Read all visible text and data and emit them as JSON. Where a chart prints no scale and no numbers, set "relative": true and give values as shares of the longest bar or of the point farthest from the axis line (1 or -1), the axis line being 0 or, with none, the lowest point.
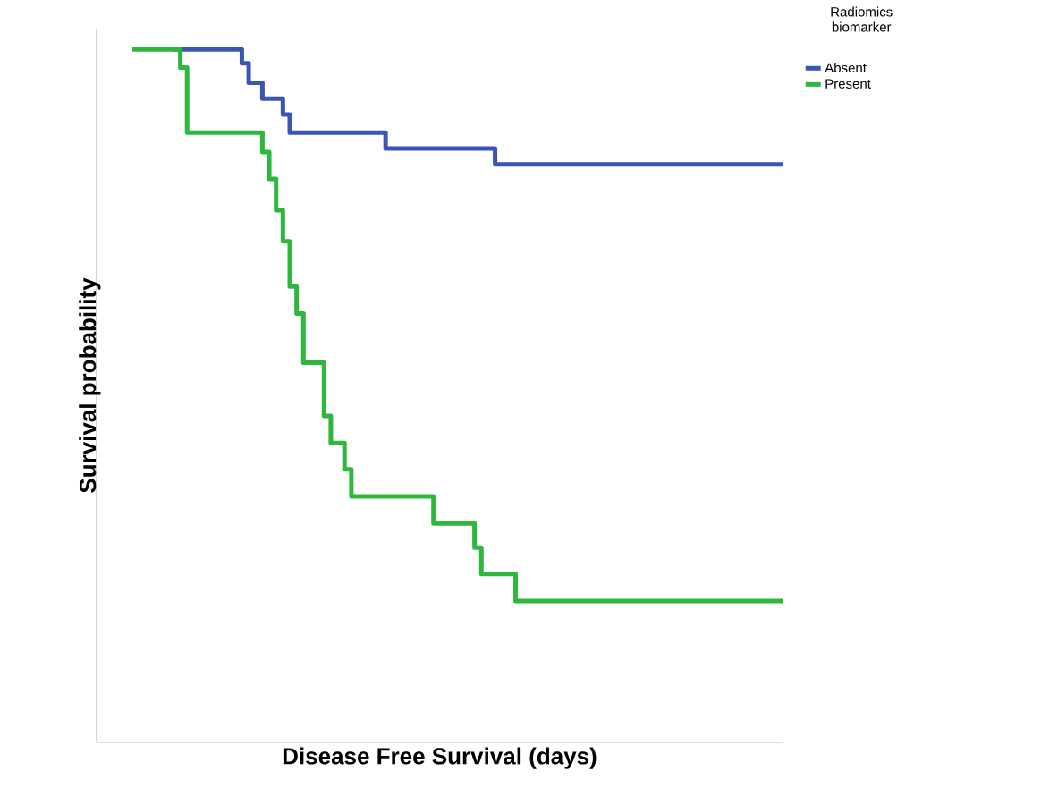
{
  "chart_data": {
    "type": "step",
    "relative": true,
    "xlabel": "Disease Free Survival (days)",
    "ylabel": "Survival probability",
    "legend_title": "Radiomics biomarker",
    "legend": "top right",
    "categories": [
      null,
      null,
      null,
      null,
      null,
      null,
      null,
      null,
      null,
      null,
      null,
      null,
      null,
      null,
      null,
      null,
      null,
      null,
      null,
      null,
      null,
      null,
      null,
      null,
      null,
      null,
      null,
      null,
      null,
      null,
      null,
      null,
      null,
      null,
      null,
      null,
      null,
      null,
      null,
      null,
      null,
      null,
      null,
      null,
      null,
      null,
      null,
      null,
      null,
      null,
      null,
      null,
      null,
      null,
      null,
      null,
      null,
      null,
      null,
      null,
      null,
      null,
      null,
      null,
      null,
      null,
      null,
      null,
      null,
      null,
      null,
      null,
      null,
      null,
      null,
      null,
      null,
      null,
      null,
      null,
      null,
      null,
      null,
      null,
      null,
      null,
      null,
      null,
      null,
      null,
      null,
      null,
      null,
      null,
      null,
      null
    ],
    "series": [
      {
        "name": "Absent",
        "color": "#3a55b4",
        "values": [
          null,
          null,
          null,
          null,
          null,
          null,
          1.0,
          1.0,
          1.0,
          1.0,
          1.0,
          1.0,
          1.0,
          1.0,
          1.0,
          1.0,
          0.98,
          0.952,
          0.952,
          0.929,
          0.929,
          0.929,
          0.906,
          0.88,
          0.88,
          0.88,
          0.88,
          0.88,
          0.88,
          0.88,
          0.88,
          0.88,
          0.88,
          0.88,
          0.88,
          0.88,
          0.88,
          0.857,
          0.857,
          0.857,
          0.857,
          0.857,
          0.857,
          0.857,
          0.857,
          0.857,
          0.857,
          0.857,
          0.857,
          0.857,
          0.857,
          0.857,
          0.857,
          0.834,
          0.834,
          0.834,
          0.834,
          0.834,
          0.834,
          0.834,
          0.834,
          0.834,
          0.834,
          0.834,
          0.834,
          0.834,
          0.834,
          0.834,
          0.834,
          0.834,
          0.834,
          0.834,
          0.834,
          0.834,
          0.834,
          0.834,
          0.834,
          0.834,
          0.834,
          0.834,
          0.834,
          0.834,
          0.834,
          0.834,
          0.834,
          0.834,
          0.834,
          0.834,
          0.834,
          0.834,
          0.834,
          0.834,
          0.834,
          0.834,
          0.834,
          0.834
        ]
      },
      {
        "name": "Present",
        "color": "#2db83d",
        "values": [
          1.0,
          1.0,
          1.0,
          1.0,
          1.0,
          1.0,
          1.0,
          0.974,
          0.88,
          0.88,
          0.88,
          0.88,
          0.88,
          0.88,
          0.88,
          0.88,
          0.88,
          0.88,
          0.88,
          0.852,
          0.813,
          0.768,
          0.723,
          0.658,
          0.619,
          0.548,
          0.548,
          0.548,
          0.471,
          0.432,
          0.432,
          0.394,
          0.355,
          0.355,
          0.355,
          0.355,
          0.355,
          0.355,
          0.355,
          0.355,
          0.355,
          0.355,
          0.355,
          0.355,
          0.316,
          0.316,
          0.316,
          0.316,
          0.316,
          0.316,
          0.281,
          0.243,
          0.243,
          0.243,
          0.243,
          0.243,
          0.204,
          0.204,
          0.204,
          0.204,
          0.204,
          0.204,
          0.204,
          0.204,
          0.204,
          0.204,
          0.204,
          0.204,
          0.204,
          0.204,
          0.204,
          0.204,
          0.204,
          0.204,
          0.204,
          0.204,
          0.204,
          0.204,
          0.204,
          0.204,
          0.204,
          0.204,
          0.204,
          0.204,
          0.204,
          0.204,
          0.204,
          0.204,
          0.204,
          0.204,
          0.204,
          0.204,
          0.204,
          0.204,
          0.204,
          0.204
        ]
      }
    ]
  }
}
